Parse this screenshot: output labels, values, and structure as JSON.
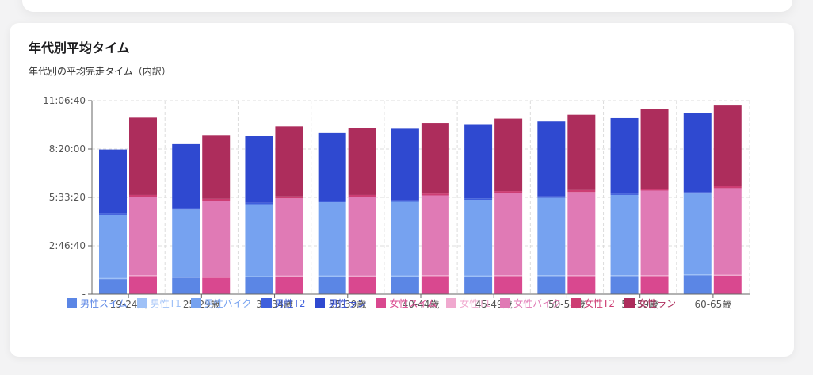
{
  "card": {
    "title": "年代別平均タイム",
    "subtitle": "年代別の平均完走タイム（内訳）"
  },
  "chart_data": {
    "type": "bar",
    "stacked": true,
    "title": "年代別平均タイム",
    "subtitle": "年代別の平均完走タイム（内訳）",
    "unit": "seconds",
    "categories": [
      "19-24歳",
      "25-29歳",
      "30-34歳",
      "35-39歳",
      "40-44歳",
      "45-49歳",
      "50-54歳",
      "55-59歳",
      "60-65歳"
    ],
    "y_ticks": [
      0,
      10000,
      20000,
      30000,
      40000
    ],
    "y_tick_labels": [
      "-",
      "2:46:40",
      "5:33:20",
      "8:20:00",
      "11:06:40"
    ],
    "ylim": [
      0,
      40000
    ],
    "grid": true,
    "legend_position": "bottom",
    "groups": [
      {
        "name": "男性",
        "segments": [
          {
            "name": "男性スイム",
            "color": "#5b86e5",
            "values": [
              3100,
              3400,
              3500,
              3600,
              3600,
              3600,
              3700,
              3700,
              3900
            ]
          },
          {
            "name": "男性T1",
            "color": "#9fc1f7",
            "values": [
              200,
              200,
              200,
              200,
              200,
              200,
              200,
              200,
              200
            ]
          },
          {
            "name": "男性バイク",
            "color": "#76a2f0",
            "values": [
              13100,
              13900,
              14900,
              15200,
              15300,
              15700,
              16000,
              16600,
              16700
            ]
          },
          {
            "name": "男性T2",
            "color": "#3f5fdc",
            "values": [
              300,
              300,
              300,
              300,
              300,
              300,
              300,
              300,
              300
            ]
          },
          {
            "name": "男性ラン",
            "color": "#2f49d0",
            "values": [
              13200,
              13200,
              13800,
              14000,
              14800,
              15200,
              15500,
              15600,
              16300
            ]
          }
        ]
      },
      {
        "name": "女性",
        "segments": [
          {
            "name": "女性スイム",
            "color": "#d9488f",
            "values": [
              3700,
              3400,
              3600,
              3600,
              3700,
              3700,
              3700,
              3700,
              3800
            ]
          },
          {
            "name": "女性T1",
            "color": "#f0a9cf",
            "values": [
              200,
              200,
              200,
              200,
              200,
              200,
              200,
              200,
              200
            ]
          },
          {
            "name": "女性バイク",
            "color": "#e07ab5",
            "values": [
              16200,
              15700,
              16000,
              16300,
              16500,
              17000,
              17200,
              17500,
              17900
            ]
          },
          {
            "name": "女性T2",
            "color": "#cd3d73",
            "values": [
              400,
              400,
              400,
              400,
              400,
              400,
              400,
              400,
              400
            ]
          },
          {
            "name": "女性ラン",
            "color": "#ad2d5c",
            "values": [
              16000,
              13200,
              14500,
              13800,
              14600,
              15000,
              15600,
              16400,
              16700
            ]
          }
        ]
      }
    ]
  }
}
